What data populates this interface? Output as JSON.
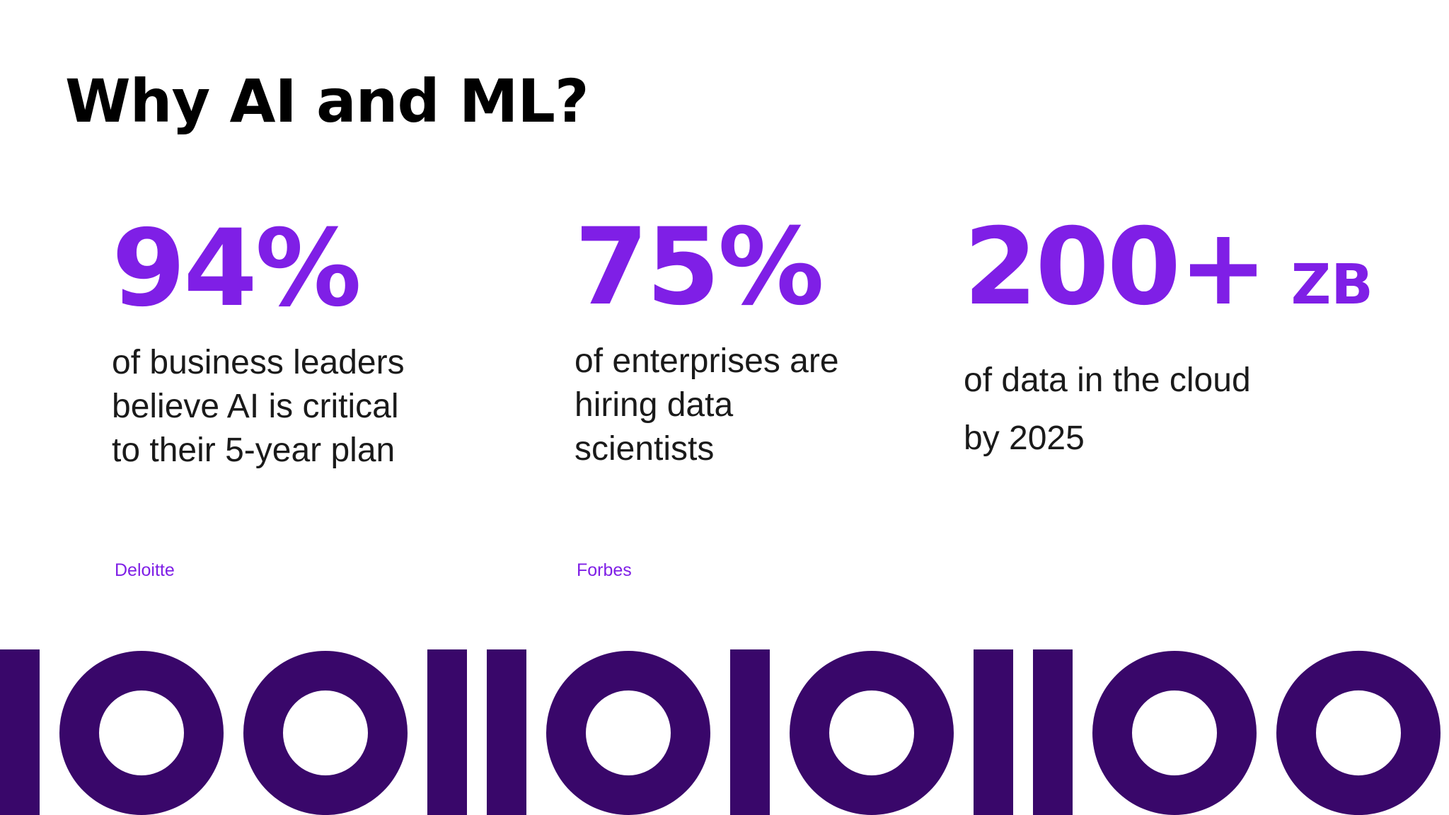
{
  "title": "Why AI and ML?",
  "colors": {
    "accent": "#7f1fe6",
    "binary": "#39076a",
    "text": "#1a1a1a"
  },
  "stats": [
    {
      "value": "94%",
      "unit": "",
      "lines": [
        "of business leaders",
        "believe AI is critical",
        "to their 5-year plan"
      ],
      "source": "Deloitte"
    },
    {
      "value": "75%",
      "unit": "",
      "lines": [
        "of enterprises are",
        "hiring data",
        "scientists"
      ],
      "source": "Forbes"
    },
    {
      "value": "200+",
      "unit": "ZB",
      "lines": [
        "of data in the cloud",
        "by 2025"
      ],
      "source": ""
    }
  ],
  "decoration": {
    "binary_digits": "100110101100"
  }
}
